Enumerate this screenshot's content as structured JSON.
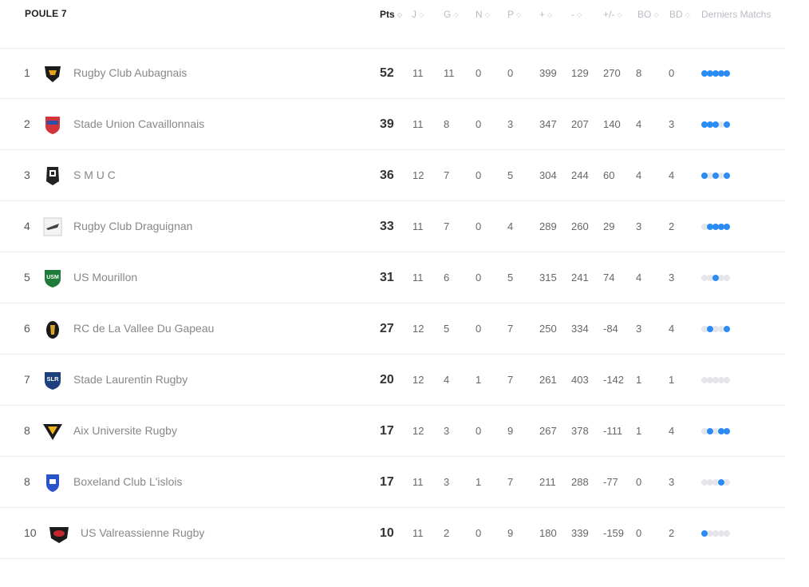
{
  "title": "POULE 7",
  "columns": [
    "Pts",
    "J",
    "G",
    "N",
    "P",
    "+",
    "-",
    "+/-",
    "BO",
    "BD",
    "Derniers Matchs"
  ],
  "sort_glyph": "◇",
  "colors": {
    "win": "#2b8cf3",
    "other": "#e4e6e9",
    "accent": "#2b8cf3"
  },
  "rows": [
    {
      "rank": "1",
      "team": "Rugby Club Aubagnais",
      "pts": "52",
      "j": "11",
      "g": "11",
      "n": "0",
      "p": "0",
      "pf": "399",
      "pa": "129",
      "diff": "270",
      "bo": "8",
      "bd": "0",
      "logo": "rca-crest-icon",
      "form": [
        "W",
        "W",
        "W",
        "W",
        "W"
      ]
    },
    {
      "rank": "2",
      "team": "Stade Union Cavaillonnais",
      "pts": "39",
      "j": "11",
      "g": "8",
      "n": "0",
      "p": "3",
      "pf": "347",
      "pa": "207",
      "diff": "140",
      "bo": "4",
      "bd": "3",
      "logo": "suc-shield-icon",
      "form": [
        "W",
        "W",
        "W",
        "L",
        "W"
      ]
    },
    {
      "rank": "3",
      "team": "S M U C",
      "pts": "36",
      "j": "12",
      "g": "7",
      "n": "0",
      "p": "5",
      "pf": "304",
      "pa": "244",
      "diff": "60",
      "bo": "4",
      "bd": "4",
      "logo": "smuc-crest-icon",
      "form": [
        "W",
        "L",
        "W",
        "L",
        "W"
      ]
    },
    {
      "rank": "4",
      "team": "Rugby Club Draguignan",
      "pts": "33",
      "j": "11",
      "g": "7",
      "n": "0",
      "p": "4",
      "pf": "289",
      "pa": "260",
      "diff": "29",
      "bo": "3",
      "bd": "2",
      "logo": "rcd-logo-icon",
      "form": [
        "L",
        "W",
        "W",
        "W",
        "W"
      ]
    },
    {
      "rank": "5",
      "team": "US Mourillon",
      "pts": "31",
      "j": "11",
      "g": "6",
      "n": "0",
      "p": "5",
      "pf": "315",
      "pa": "241",
      "diff": "74",
      "bo": "4",
      "bd": "3",
      "logo": "usm-shield-icon",
      "form": [
        "L",
        "L",
        "W",
        "L",
        "L"
      ]
    },
    {
      "rank": "6",
      "team": "RC de La Vallee Du Gapeau",
      "pts": "27",
      "j": "12",
      "g": "5",
      "n": "0",
      "p": "7",
      "pf": "250",
      "pa": "334",
      "diff": "-84",
      "bo": "3",
      "bd": "4",
      "logo": "rcvg-crest-icon",
      "form": [
        "L",
        "W",
        "L",
        "L",
        "W"
      ]
    },
    {
      "rank": "7",
      "team": "Stade Laurentin Rugby",
      "pts": "20",
      "j": "12",
      "g": "4",
      "n": "1",
      "p": "7",
      "pf": "261",
      "pa": "403",
      "diff": "-142",
      "bo": "1",
      "bd": "1",
      "logo": "slr-shield-icon",
      "form": [
        "L",
        "L",
        "L",
        "L",
        "L"
      ]
    },
    {
      "rank": "8",
      "team": "Aix Universite Rugby",
      "pts": "17",
      "j": "12",
      "g": "3",
      "n": "0",
      "p": "9",
      "pf": "267",
      "pa": "378",
      "diff": "-111",
      "bo": "1",
      "bd": "4",
      "logo": "auc-crest-icon",
      "form": [
        "L",
        "W",
        "L",
        "W",
        "W"
      ]
    },
    {
      "rank": "8",
      "team": "Boxeland Club L'islois",
      "pts": "17",
      "j": "11",
      "g": "3",
      "n": "1",
      "p": "7",
      "pf": "211",
      "pa": "288",
      "diff": "-77",
      "bo": "0",
      "bd": "3",
      "logo": "bci-shield-icon",
      "form": [
        "L",
        "L",
        "L",
        "W",
        "L"
      ]
    },
    {
      "rank": "10",
      "team": "US Valreassienne Rugby",
      "pts": "10",
      "j": "11",
      "g": "2",
      "n": "0",
      "p": "9",
      "pf": "180",
      "pa": "339",
      "diff": "-159",
      "bo": "0",
      "bd": "2",
      "logo": "usvr-crest-icon",
      "form": [
        "W",
        "L",
        "L",
        "L",
        "L"
      ]
    }
  ]
}
